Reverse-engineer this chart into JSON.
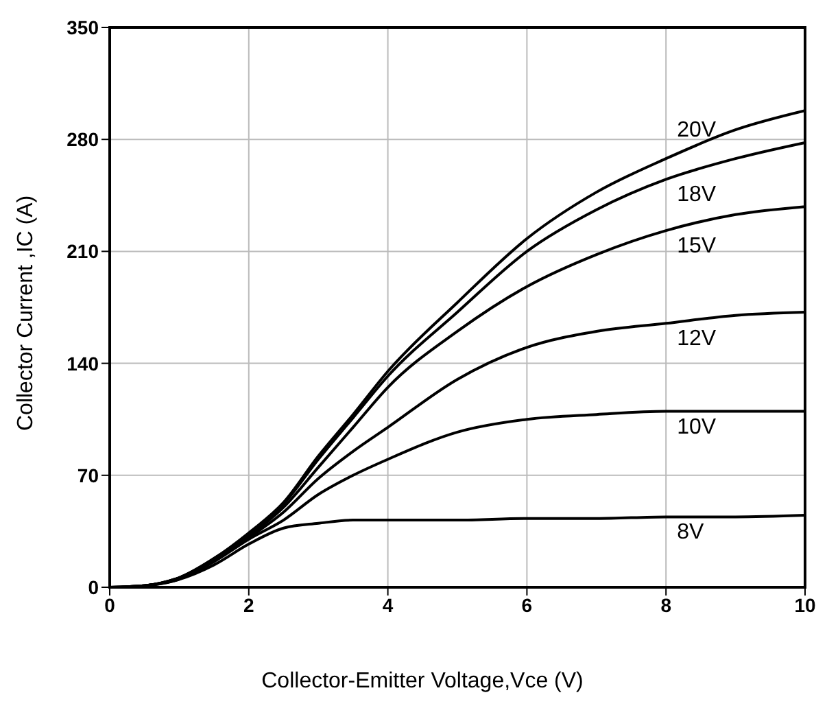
{
  "chart_data": {
    "type": "line",
    "xlabel": "Collector-Emitter Voltage,Vce (V)",
    "ylabel": "Collector Current ,IC (A)",
    "x": [
      0,
      0.5,
      1,
      1.5,
      2,
      2.5,
      3,
      3.5,
      4,
      5,
      6,
      7,
      8,
      9,
      10
    ],
    "series": [
      {
        "name": "20V",
        "color": "#000000",
        "values": [
          0,
          1,
          6,
          18,
          34,
          53,
          82,
          108,
          135,
          178,
          218,
          247,
          268,
          286,
          298
        ]
      },
      {
        "name": "18V",
        "color": "#000000",
        "values": [
          0,
          1,
          6,
          18,
          33,
          52,
          80,
          106,
          132,
          172,
          210,
          236,
          255,
          268,
          278
        ]
      },
      {
        "name": "15V",
        "color": "#000000",
        "values": [
          0,
          1,
          6,
          17,
          32,
          50,
          75,
          100,
          125,
          160,
          188,
          208,
          223,
          233,
          238
        ]
      },
      {
        "name": "12V",
        "color": "#000000",
        "values": [
          0,
          1,
          6,
          17,
          31,
          47,
          68,
          85,
          100,
          130,
          150,
          160,
          165,
          170,
          172
        ]
      },
      {
        "name": "10V",
        "color": "#000000",
        "values": [
          0,
          1,
          5,
          16,
          30,
          42,
          58,
          70,
          80,
          97,
          105,
          108,
          110,
          110,
          110
        ]
      },
      {
        "name": "8V",
        "color": "#000000",
        "values": [
          0,
          1,
          5,
          14,
          27,
          37,
          40,
          42,
          42,
          42,
          43,
          43,
          44,
          44,
          45
        ]
      }
    ],
    "xlim": [
      0,
      10
    ],
    "xticks": [
      0,
      2,
      4,
      6,
      8,
      10
    ],
    "ylim": [
      0,
      350
    ],
    "yticks": [
      0,
      70,
      140,
      210,
      280,
      350
    ],
    "grid": true,
    "legend": false,
    "marker": "none",
    "line_style": "solid"
  }
}
